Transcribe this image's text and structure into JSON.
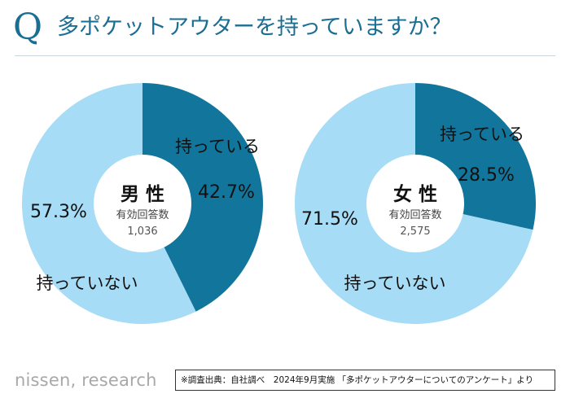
{
  "header": {
    "q_letter": "Q",
    "title": "多ポケットアウターを持っていますか？"
  },
  "colors": {
    "have": "#12759c",
    "not_have": "#a6dcf5",
    "title": "#1a6e93"
  },
  "chart_data": [
    {
      "type": "pie",
      "style": "donut",
      "title": "男 性",
      "subtitle": "有効回答数",
      "n": "1,036",
      "slices": [
        {
          "name": "持っている",
          "value": 42.7,
          "label": "42.7%"
        },
        {
          "name": "持っていない",
          "value": 57.3,
          "label": "57.3%"
        }
      ]
    },
    {
      "type": "pie",
      "style": "donut",
      "title": "女 性",
      "subtitle": "有効回答数",
      "n": "2,575",
      "slices": [
        {
          "name": "持っている",
          "value": 28.5,
          "label": "28.5%"
        },
        {
          "name": "持っていない",
          "value": 71.5,
          "label": "71.5%"
        }
      ]
    }
  ],
  "footer": {
    "brand": "nissen, research",
    "source": "※調査出典：自社調べ　2024年9月実施 「多ポケットアウターについてのアンケート」より"
  }
}
